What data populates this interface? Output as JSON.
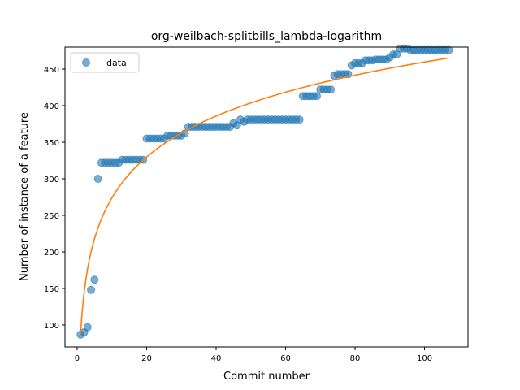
{
  "chart_data": {
    "type": "scatter",
    "title": "org-weilbach-splitbills_lambda-logarithm",
    "xlabel": "Commit number",
    "ylabel": "Number of instance of a feature",
    "xlim": [
      -3.5,
      112.5
    ],
    "ylim": [
      70,
      480
    ],
    "xticks": [
      0,
      20,
      40,
      60,
      80,
      100
    ],
    "yticks": [
      100,
      150,
      200,
      250,
      300,
      350,
      400,
      450
    ],
    "grid": false,
    "legend_position": "top-left",
    "series": [
      {
        "name": "data",
        "kind": "points",
        "color": "#1f77b4",
        "x": [
          1,
          2,
          3,
          4,
          5,
          6,
          7,
          8,
          9,
          10,
          11,
          12,
          13,
          14,
          15,
          16,
          17,
          18,
          19,
          20,
          21,
          22,
          23,
          24,
          25,
          26,
          27,
          28,
          29,
          30,
          31,
          32,
          33,
          34,
          35,
          36,
          37,
          38,
          39,
          40,
          41,
          42,
          43,
          44,
          45,
          46,
          47,
          48,
          49,
          50,
          51,
          52,
          53,
          54,
          55,
          56,
          57,
          58,
          59,
          60,
          61,
          62,
          63,
          64,
          65,
          66,
          67,
          68,
          69,
          70,
          71,
          72,
          73,
          74,
          75,
          76,
          77,
          78,
          79,
          80,
          81,
          82,
          83,
          84,
          85,
          86,
          87,
          88,
          89,
          90,
          91,
          92,
          93,
          94,
          95,
          96,
          97,
          98,
          99,
          100,
          101,
          102,
          103,
          104,
          105,
          106,
          107
        ],
        "y": [
          87,
          90,
          97,
          148,
          162,
          300,
          322,
          322,
          322,
          322,
          322,
          322,
          326,
          326,
          326,
          326,
          326,
          326,
          326,
          355,
          355,
          355,
          355,
          355,
          355,
          359,
          359,
          359,
          359,
          359,
          362,
          371,
          371,
          371,
          371,
          371,
          371,
          371,
          371,
          371,
          371,
          371,
          371,
          371,
          376,
          373,
          381,
          378,
          381,
          381,
          381,
          381,
          381,
          381,
          381,
          381,
          381,
          381,
          381,
          381,
          381,
          381,
          381,
          381,
          413,
          413,
          413,
          413,
          413,
          422,
          422,
          422,
          422,
          441,
          443,
          443,
          443,
          443,
          455,
          458,
          458,
          458,
          462,
          462,
          462,
          463,
          463,
          463,
          463,
          466,
          470,
          470,
          478,
          478,
          478,
          476,
          476,
          476,
          476,
          476,
          476,
          476,
          476,
          476,
          476,
          476,
          476
        ]
      },
      {
        "name": "",
        "kind": "line",
        "color": "#ff7f0e",
        "model": {
          "form": "a + b*ln(x)",
          "a": 88,
          "b": 80.7
        },
        "x_range": [
          1,
          107
        ]
      }
    ]
  }
}
